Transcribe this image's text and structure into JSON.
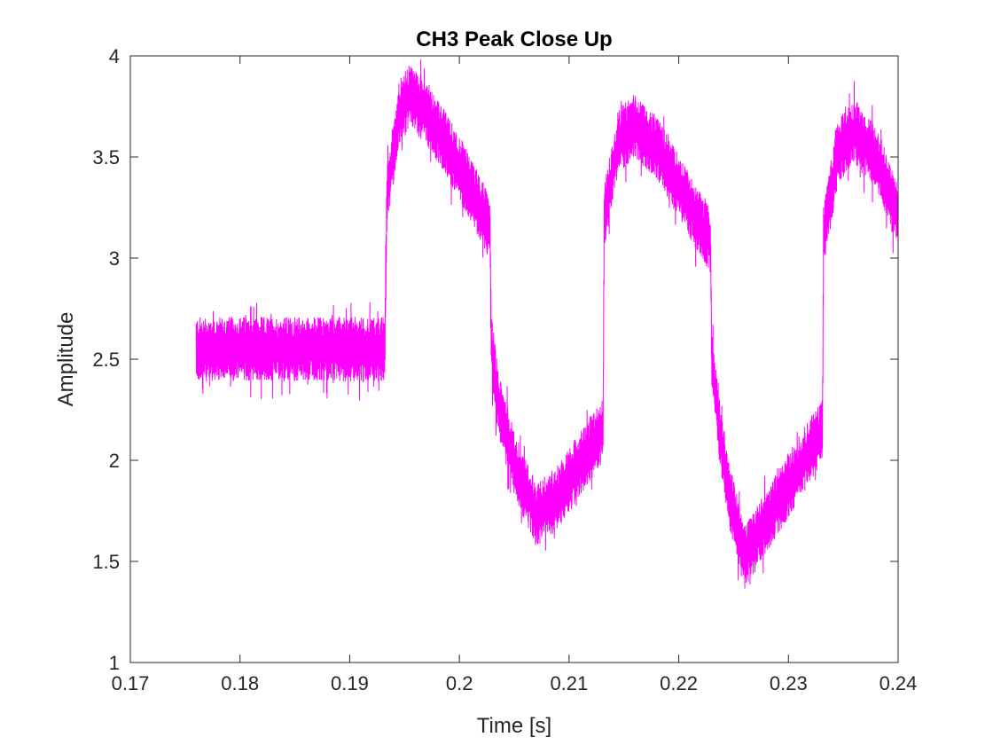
{
  "chart_data": {
    "type": "line",
    "title": "CH3 Peak Close Up",
    "xlabel": "Time [s]",
    "ylabel": "Amplitude",
    "xlim": [
      0.17,
      0.24
    ],
    "ylim": [
      1,
      4
    ],
    "xticks": [
      0.17,
      0.18,
      0.19,
      0.2,
      0.21,
      0.22,
      0.23,
      0.24
    ],
    "xtick_labels": [
      "0.17",
      "0.18",
      "0.19",
      "0.2",
      "0.21",
      "0.22",
      "0.23",
      "0.24"
    ],
    "yticks": [
      1,
      1.5,
      2,
      2.5,
      3,
      3.5,
      4
    ],
    "ytick_labels": [
      "1",
      "1.5",
      "2",
      "2.5",
      "3",
      "3.5",
      "4"
    ],
    "grid": false,
    "series": [
      {
        "color": "#ff00ff",
        "x_start": 0.176,
        "x_end": 0.24,
        "noise_amplitude": 0.16,
        "envelope": {
          "x": [
            0.176,
            0.1932,
            0.1934,
            0.1945,
            0.1955,
            0.197,
            0.2,
            0.2028,
            0.2029,
            0.2035,
            0.205,
            0.207,
            0.209,
            0.2131,
            0.2132,
            0.2145,
            0.216,
            0.218,
            0.2229,
            0.223,
            0.2236,
            0.2245,
            0.226,
            0.228,
            0.2331,
            0.2332,
            0.2345,
            0.236,
            0.238,
            0.24
          ],
          "y": [
            2.55,
            2.55,
            3.3,
            3.72,
            3.8,
            3.72,
            3.45,
            3.15,
            2.58,
            2.3,
            1.98,
            1.73,
            1.82,
            2.15,
            3.2,
            3.58,
            3.66,
            3.54,
            3.08,
            2.5,
            2.2,
            1.85,
            1.52,
            1.7,
            2.15,
            3.1,
            3.52,
            3.63,
            3.5,
            3.2
          ]
        }
      }
    ]
  }
}
